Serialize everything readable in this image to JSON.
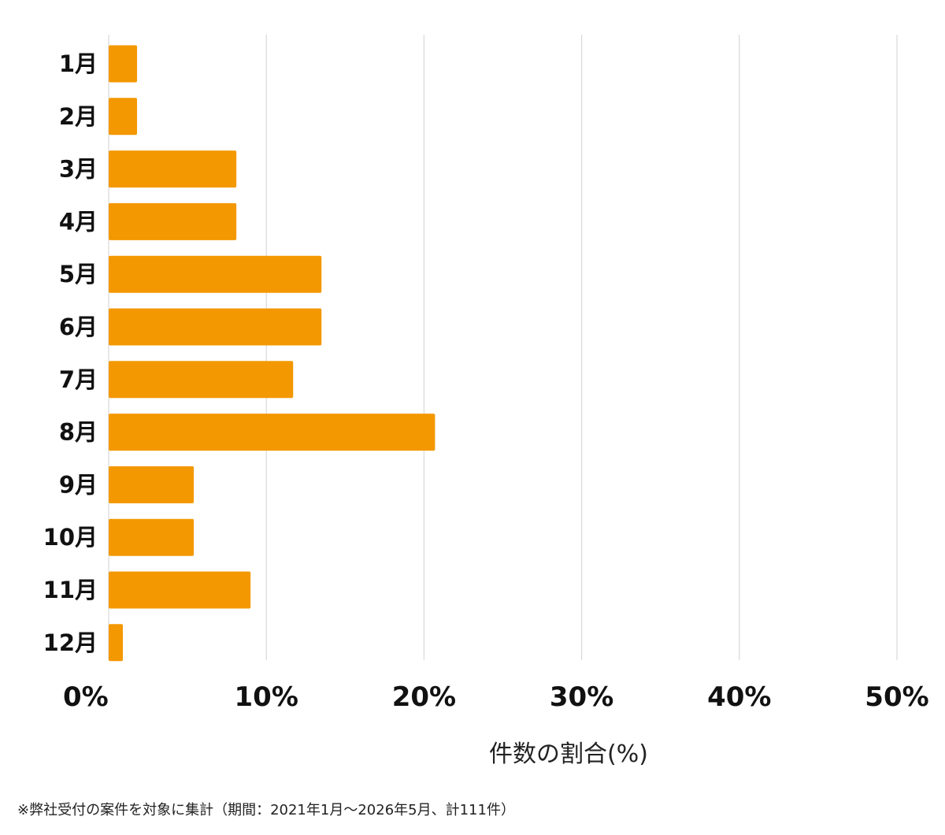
{
  "chart_data": {
    "type": "bar",
    "orientation": "horizontal",
    "categories": [
      "1月",
      "2月",
      "3月",
      "4月",
      "5月",
      "6月",
      "7月",
      "8月",
      "9月",
      "10月",
      "11月",
      "12月"
    ],
    "values": [
      1.8,
      1.8,
      8.1,
      8.1,
      13.5,
      13.5,
      11.7,
      20.7,
      5.4,
      5.4,
      9.0,
      0.9
    ],
    "xlabel": "件数の割合(%)",
    "xlim": [
      0,
      50
    ],
    "xticks": [
      0,
      10,
      20,
      30,
      40,
      50
    ],
    "xtick_labels": [
      "0%",
      "10%",
      "20%",
      "30%",
      "40%",
      "50%"
    ],
    "grid": "vertical",
    "legend": "none",
    "bar_color": "#F39800",
    "grid_color": "#d9d9d9"
  },
  "footnote": "※弊社受付の案件を対象に集計（期間：2021年1月〜2026年5月、計111件）"
}
